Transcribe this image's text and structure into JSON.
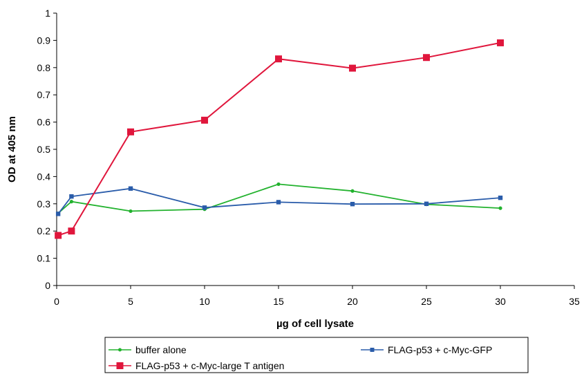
{
  "chart_data": {
    "type": "line",
    "title": "",
    "xlabel": "µg of cell lysate",
    "ylabel": "OD at 405 nm",
    "xlim": [
      0,
      35
    ],
    "ylim": [
      0,
      1
    ],
    "x_ticks": [
      "0",
      "5",
      "10",
      "15",
      "20",
      "25",
      "30",
      "35"
    ],
    "y_ticks": [
      "0",
      "0.1",
      "0.2",
      "0.3",
      "0.4",
      "0.5",
      "0.6",
      "0.7",
      "0.8",
      "0.9",
      "1"
    ],
    "grid": false,
    "legend_position": "bottom",
    "series": [
      {
        "name": "buffer alone",
        "color": "#22b22e",
        "marker": "circle",
        "x": [
          0.1,
          1,
          5,
          10,
          15,
          20,
          25,
          30
        ],
        "y": [
          0.265,
          0.308,
          0.273,
          0.28,
          0.372,
          0.347,
          0.298,
          0.284
        ]
      },
      {
        "name": "FLAG-p53 + c-Myc-GFP",
        "color": "#2a5caa",
        "marker": "square",
        "x": [
          0.1,
          1,
          5,
          10,
          15,
          20,
          25,
          30
        ],
        "y": [
          0.263,
          0.327,
          0.356,
          0.286,
          0.306,
          0.299,
          0.3,
          0.322
        ]
      },
      {
        "name": "FLAG-p53 + c-Myc-large T antigen",
        "color": "#e0163c",
        "marker": "square-large",
        "x": [
          0.1,
          1,
          5,
          10,
          15,
          20,
          25,
          30
        ],
        "y": [
          0.184,
          0.2,
          0.564,
          0.607,
          0.832,
          0.798,
          0.837,
          0.891
        ]
      }
    ]
  }
}
